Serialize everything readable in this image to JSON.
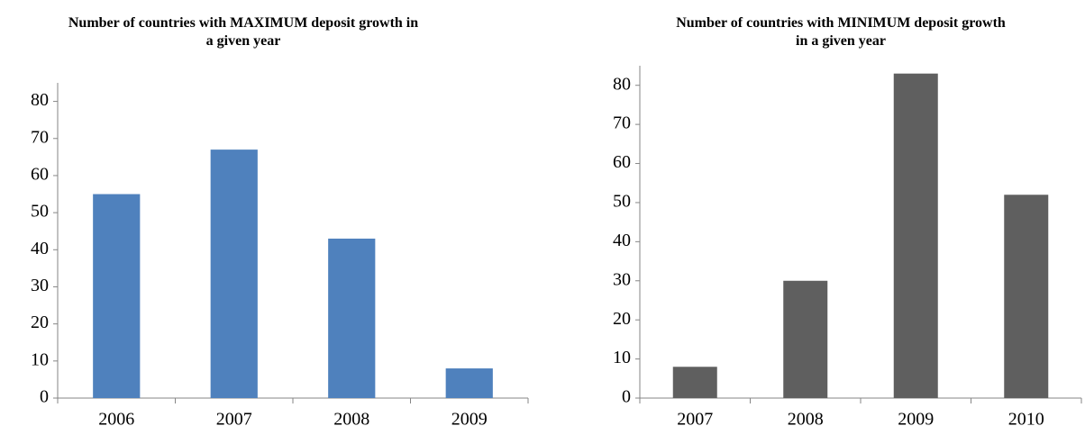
{
  "chart_data": [
    {
      "type": "bar",
      "title": "Number of countries with MAXIMUM deposit growth in a given year",
      "categories": [
        "2006",
        "2007",
        "2008",
        "2009"
      ],
      "values": [
        55,
        67,
        43,
        8
      ],
      "color": "#4f81bd",
      "ylim": [
        0,
        85
      ],
      "yticks": [
        0,
        10,
        20,
        30,
        40,
        50,
        60,
        70,
        80
      ]
    },
    {
      "type": "bar",
      "title": "Number of countries with MINIMUM deposit growth in a given year",
      "categories": [
        "2007",
        "2008",
        "2009",
        "2010"
      ],
      "values": [
        8,
        30,
        83,
        52
      ],
      "color": "#5f5f5f",
      "ylim": [
        0,
        85
      ],
      "yticks": [
        0,
        10,
        20,
        30,
        40,
        50,
        60,
        70,
        80
      ]
    }
  ]
}
